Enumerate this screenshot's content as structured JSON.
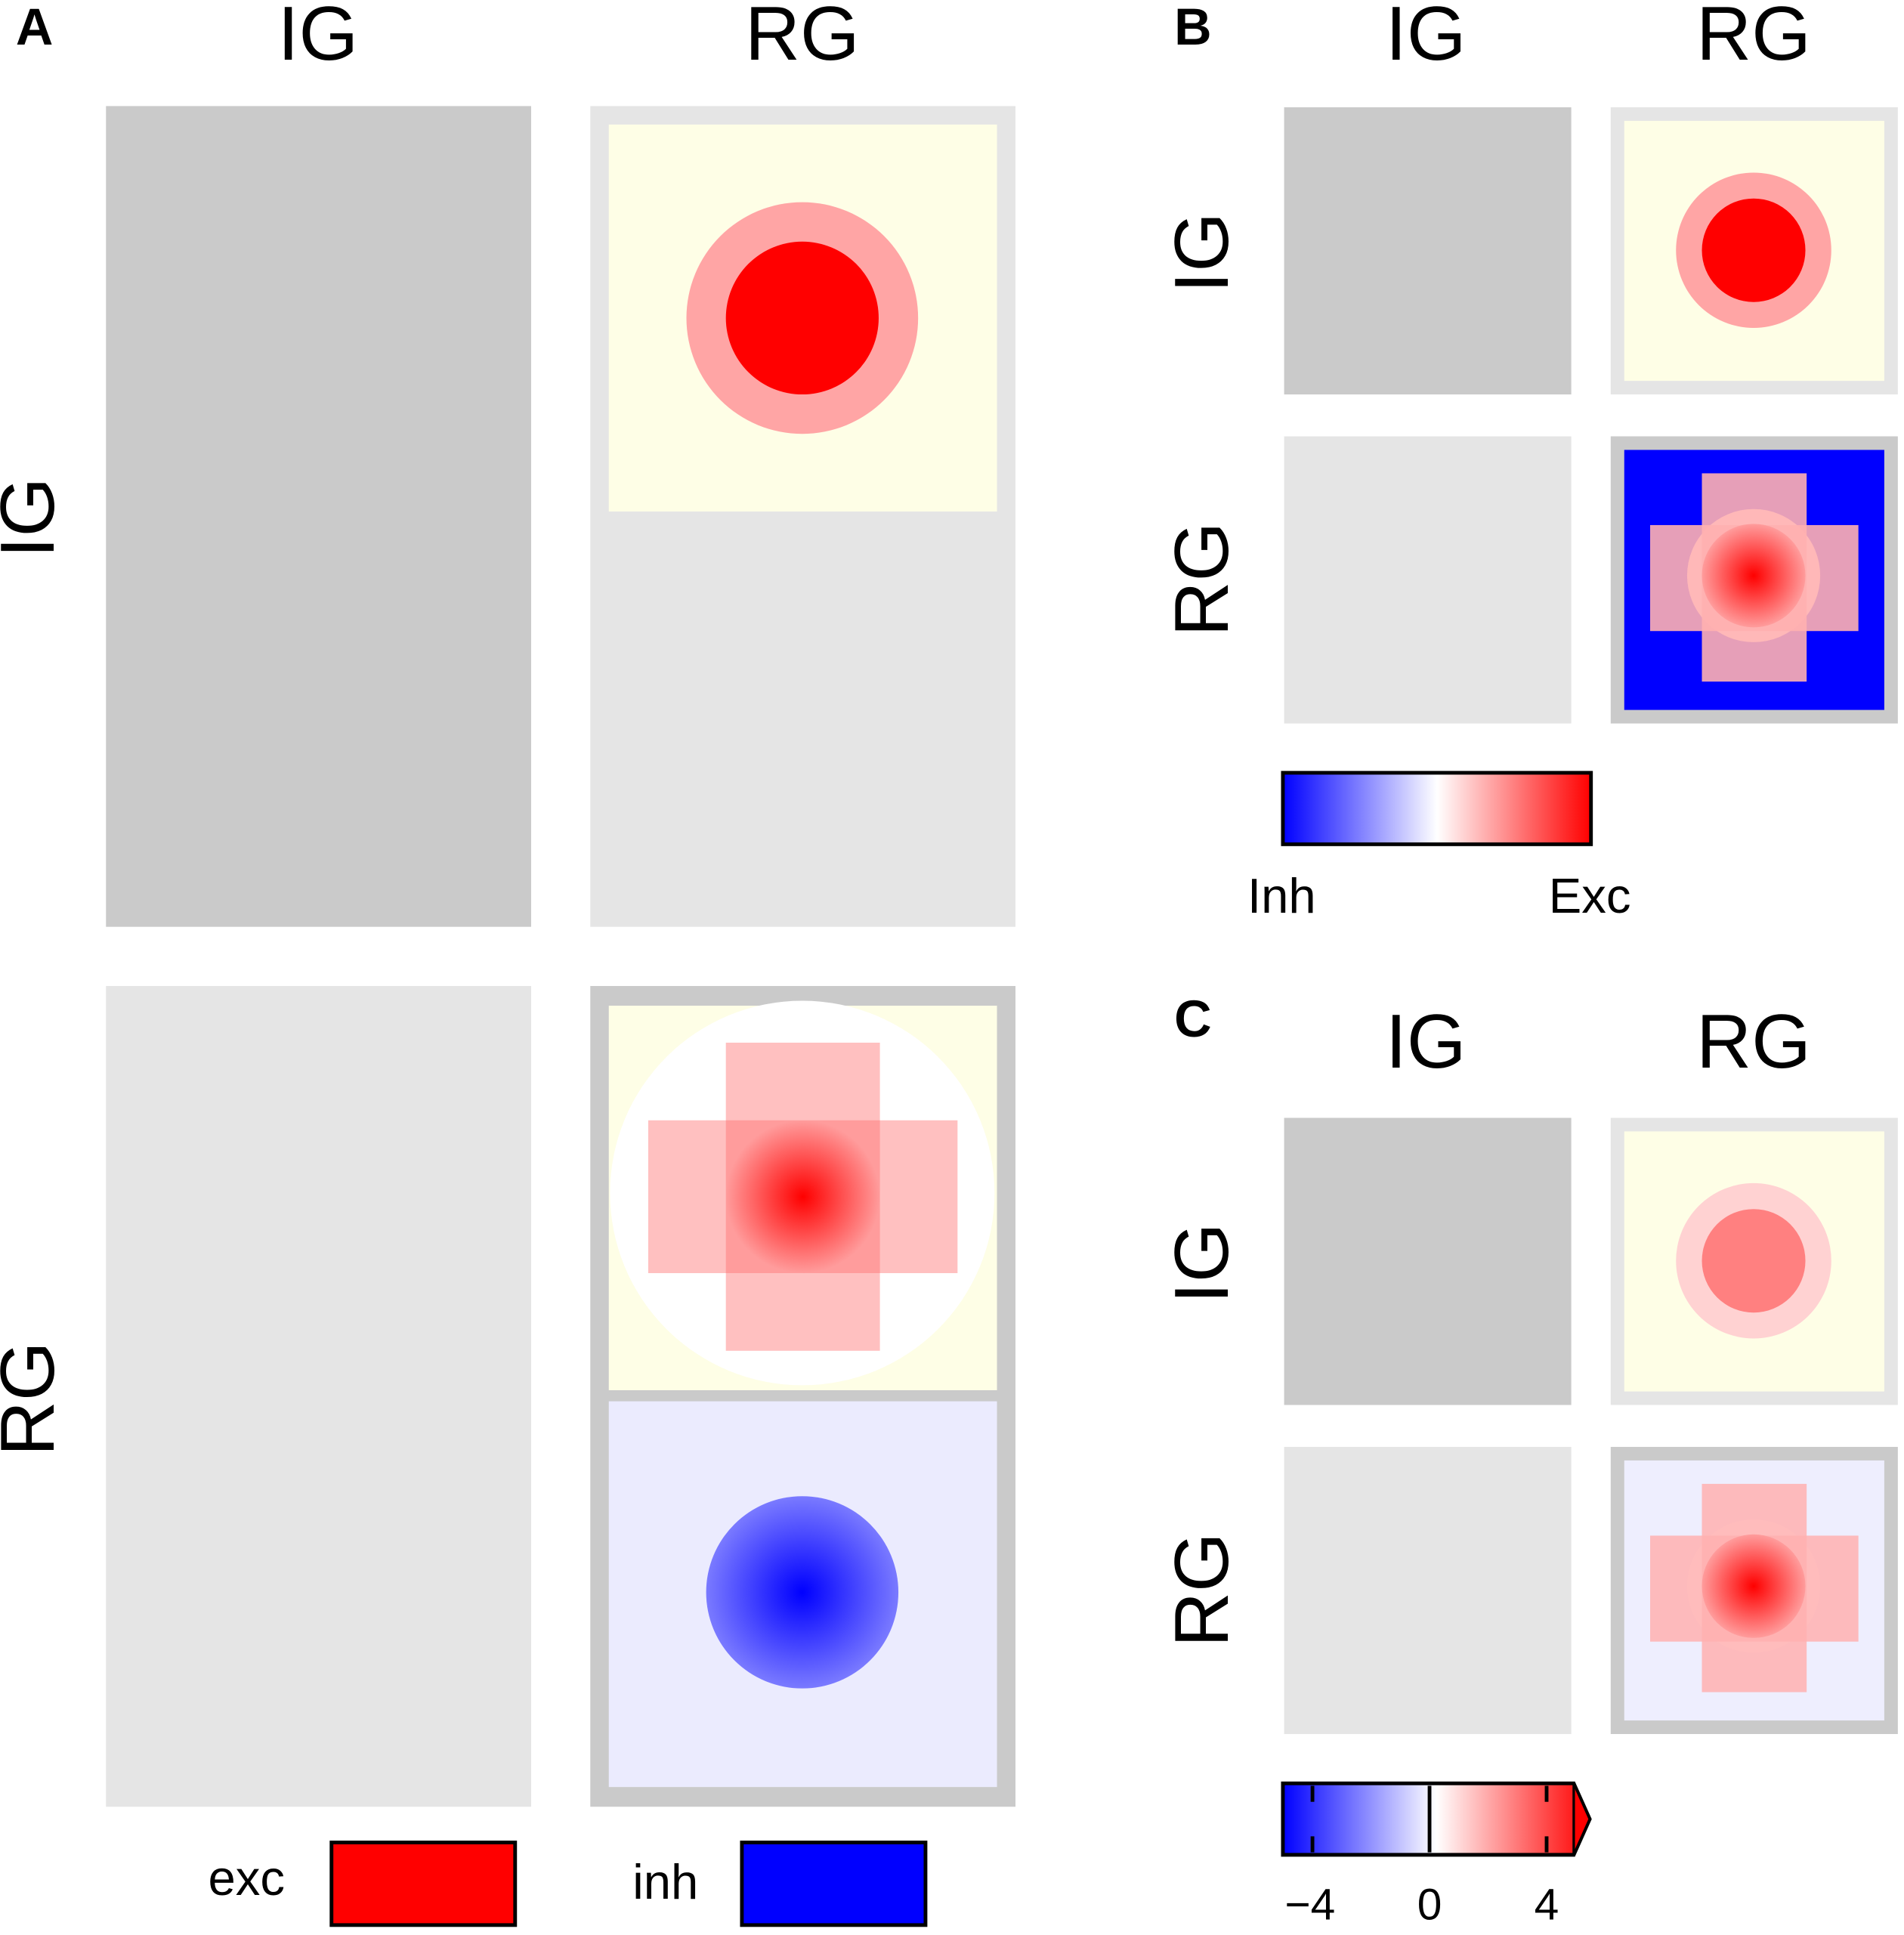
{
  "panels": [
    {
      "label": "A",
      "columns": [
        "IG",
        "RG"
      ],
      "rows": [
        "IG",
        "RG"
      ],
      "legend": [
        "exc",
        "inh"
      ]
    },
    {
      "label": "B",
      "columns": [
        "IG",
        "RG"
      ],
      "rows": [
        "IG",
        "RG"
      ],
      "colorbar": {
        "labels": [
          "Inh",
          "Exc"
        ]
      }
    },
    {
      "label": "C",
      "columns": [
        "IG",
        "RG"
      ],
      "rows": [
        "IG",
        "RG"
      ],
      "colorbar": {
        "ticks": [
          "−4",
          "0",
          "4"
        ]
      }
    }
  ]
}
